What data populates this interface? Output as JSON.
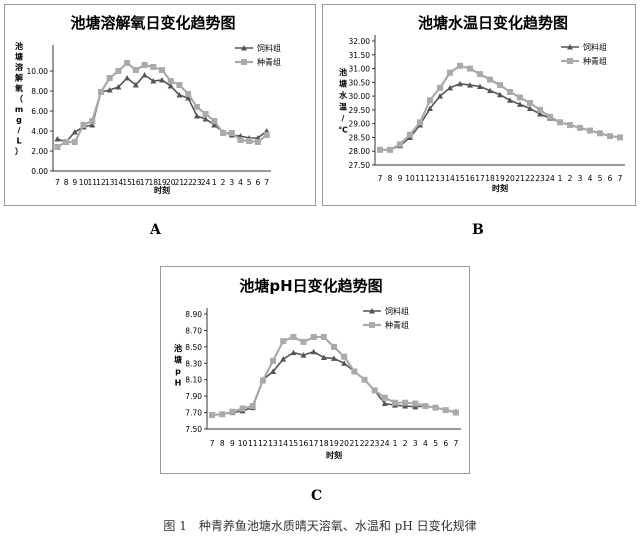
{
  "chart_data": [
    {
      "type": "line",
      "title": "池塘溶解氧日变化趋势图",
      "xlabel": "时刻",
      "ylabel": "池塘溶解氧（mg/L）",
      "categories": [
        "7",
        "8",
        "9",
        "10",
        "11",
        "12",
        "13",
        "14",
        "15",
        "16",
        "17",
        "18",
        "19",
        "20",
        "21",
        "22",
        "23",
        "24",
        "1",
        "2",
        "3",
        "4",
        "5",
        "6",
        "7"
      ],
      "ylim": [
        0,
        12
      ],
      "yticks": [
        "0.00",
        "2.00",
        "4.00",
        "6.00",
        "8.00",
        "10.00"
      ],
      "legend_position": "top-right",
      "series": [
        {
          "name": "饲料组",
          "values": [
            3.2,
            2.9,
            3.9,
            4.4,
            4.6,
            7.9,
            8.1,
            8.4,
            9.3,
            8.6,
            9.6,
            9.0,
            9.1,
            8.5,
            7.6,
            7.3,
            5.5,
            5.2,
            4.6,
            3.9,
            3.6,
            3.5,
            3.3,
            3.3,
            4.0
          ],
          "color": "#555555",
          "marker": "triangle"
        },
        {
          "name": "种青组",
          "values": [
            2.4,
            2.9,
            2.9,
            4.6,
            5.0,
            7.9,
            9.3,
            10.0,
            10.8,
            10.1,
            10.6,
            10.4,
            10.1,
            9.0,
            8.6,
            7.7,
            6.4,
            5.7,
            5.0,
            3.8,
            3.8,
            3.1,
            3.0,
            2.9,
            3.6
          ],
          "color": "#aaaaaa",
          "marker": "square"
        }
      ]
    },
    {
      "type": "line",
      "title": "池塘水温日变化趋势图",
      "xlabel": "时刻",
      "ylabel": "池塘水温/℃",
      "categories": [
        "7",
        "8",
        "9",
        "10",
        "11",
        "12",
        "13",
        "14",
        "15",
        "16",
        "17",
        "18",
        "19",
        "20",
        "21",
        "22",
        "23",
        "24",
        "1",
        "2",
        "3",
        "4",
        "5",
        "6",
        "7"
      ],
      "ylim": [
        27.5,
        32.0
      ],
      "yticks": [
        "27.50",
        "28.00",
        "28.50",
        "29.00",
        "29.50",
        "30.00",
        "30.50",
        "31.00",
        "31.50",
        "32.00"
      ],
      "legend_position": "top-right",
      "series": [
        {
          "name": "饲料组",
          "values": [
            28.05,
            28.05,
            28.2,
            28.5,
            28.95,
            29.55,
            30.0,
            30.3,
            30.45,
            30.4,
            30.35,
            30.2,
            30.05,
            29.85,
            29.7,
            29.55,
            29.35,
            29.2,
            29.05,
            28.95,
            28.85,
            28.75,
            28.65,
            28.55,
            28.5
          ],
          "color": "#555555",
          "marker": "triangle"
        },
        {
          "name": "种青组",
          "values": [
            28.05,
            28.05,
            28.25,
            28.6,
            29.05,
            29.85,
            30.3,
            30.85,
            31.1,
            31.0,
            30.8,
            30.6,
            30.4,
            30.15,
            29.95,
            29.75,
            29.5,
            29.25,
            29.05,
            28.95,
            28.85,
            28.75,
            28.65,
            28.55,
            28.5
          ],
          "color": "#aaaaaa",
          "marker": "square"
        }
      ]
    },
    {
      "type": "line",
      "title": "池塘pH日变化趋势图",
      "xlabel": "时刻",
      "ylabel": "池塘pH",
      "categories": [
        "7",
        "8",
        "9",
        "10",
        "11",
        "12",
        "13",
        "14",
        "15",
        "16",
        "17",
        "18",
        "19",
        "20",
        "21",
        "22",
        "23",
        "24",
        "1",
        "2",
        "3",
        "4",
        "5",
        "6",
        "7"
      ],
      "ylim": [
        7.5,
        8.9
      ],
      "yticks": [
        "7.50",
        "7.70",
        "7.90",
        "8.10",
        "8.30",
        "8.50",
        "8.70",
        "8.90"
      ],
      "legend_position": "top-right",
      "series": [
        {
          "name": "饲料组",
          "values": [
            7.67,
            7.68,
            7.7,
            7.72,
            7.76,
            8.1,
            8.2,
            8.35,
            8.43,
            8.4,
            8.44,
            8.37,
            8.36,
            8.3,
            8.2,
            8.1,
            7.97,
            7.81,
            7.79,
            7.78,
            7.77,
            7.78,
            7.76,
            7.73,
            7.71
          ],
          "color": "#555555",
          "marker": "triangle"
        },
        {
          "name": "种青组",
          "values": [
            7.67,
            7.68,
            7.71,
            7.75,
            7.78,
            8.09,
            8.33,
            8.57,
            8.62,
            8.56,
            8.62,
            8.62,
            8.5,
            8.38,
            8.2,
            8.1,
            7.97,
            7.88,
            7.82,
            7.82,
            7.81,
            7.78,
            7.76,
            7.73,
            7.7
          ],
          "color": "#aaaaaa",
          "marker": "square"
        }
      ]
    }
  ],
  "panel_labels": [
    "A",
    "B",
    "C"
  ],
  "caption": "图 1　种青养鱼池塘水质晴天溶氧、水温和 pH 日变化规律"
}
